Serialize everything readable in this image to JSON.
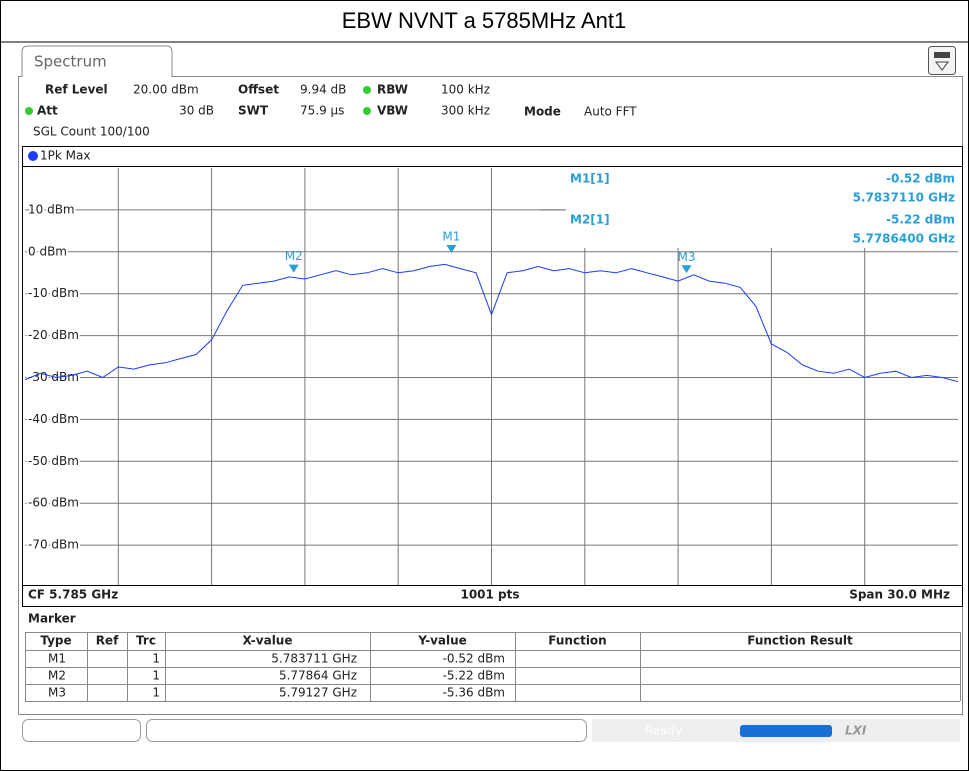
{
  "header": {
    "title": "EBW NVNT a 5785MHz Ant1"
  },
  "tab": {
    "title": "Spectrum"
  },
  "settings": {
    "ref_level": {
      "label": "Ref Level",
      "value": "20.00 dBm"
    },
    "offset": {
      "label": "Offset",
      "value": "9.94 dB"
    },
    "rbw": {
      "label": "RBW",
      "value": "100 kHz"
    },
    "att": {
      "label": "Att",
      "value": "30 dB"
    },
    "swt": {
      "label": "SWT",
      "value": "75.9 µs"
    },
    "vbw": {
      "label": "VBW",
      "value": "300 kHz"
    },
    "mode": {
      "label": "Mode",
      "value": "Auto FFT"
    },
    "sgl_count": "SGL Count 100/100"
  },
  "marker_info": [
    {
      "name": "M1[1]",
      "level": "-0.52 dBm",
      "freq": "5.7837110 GHz"
    },
    {
      "name": "M2[1]",
      "level": "-5.22 dBm",
      "freq": "5.7786400 GHz"
    }
  ],
  "footer": {
    "center_freq": "CF 5.785 GHz",
    "points": "1001 pts",
    "span": "Span 30.0 MHz"
  },
  "marker_table": {
    "title": "Marker",
    "columns": [
      "Type",
      "Ref",
      "Trc",
      "X-value",
      "Y-value",
      "Function",
      "Function Result"
    ],
    "rows": [
      {
        "type": "M1",
        "trc": "1",
        "x_value": "5.783711 GHz",
        "y_value": "-0.52 dBm"
      },
      {
        "type": "M2",
        "trc": "1",
        "x_value": "5.77864 GHz",
        "y_value": "-5.22 dBm"
      },
      {
        "type": "M3",
        "trc": "1",
        "x_value": "5.79127 GHz",
        "y_value": "-5.36 dBm"
      }
    ]
  },
  "status": {
    "state": "Ready"
  },
  "chart_data": {
    "type": "line",
    "xlim": [
      5.77,
      5.8
    ],
    "ylim": [
      -80,
      20
    ],
    "yticks": [
      {
        "value": 10,
        "label": "10 dBm"
      },
      {
        "value": 0,
        "label": "0 dBm"
      },
      {
        "value": -10,
        "label": "-10 dBm"
      },
      {
        "value": -20,
        "label": "-20 dBm"
      },
      {
        "value": -30,
        "label": "-30 dBm"
      },
      {
        "value": -40,
        "label": "-40 dBm"
      },
      {
        "value": -50,
        "label": "-50 dBm"
      },
      {
        "value": -60,
        "label": "-60 dBm"
      },
      {
        "value": -70,
        "label": "-70 dBm"
      }
    ],
    "grid": true,
    "x": [
      5.77,
      5.7705,
      5.771,
      5.7715,
      5.772,
      5.7725,
      5.773,
      5.7735,
      5.774,
      5.7745,
      5.775,
      5.7755,
      5.776,
      5.7765,
      5.777,
      5.7775,
      5.778,
      5.7785,
      5.779,
      5.7795,
      5.78,
      5.7805,
      5.781,
      5.7815,
      5.782,
      5.7825,
      5.783,
      5.7835,
      5.784,
      5.7845,
      5.785,
      5.7855,
      5.786,
      5.7865,
      5.787,
      5.7875,
      5.788,
      5.7885,
      5.789,
      5.7895,
      5.79,
      5.7905,
      5.791,
      5.7915,
      5.792,
      5.7925,
      5.793,
      5.7935,
      5.794,
      5.7945,
      5.795,
      5.7955,
      5.796,
      5.7965,
      5.797,
      5.7975,
      5.798,
      5.7985,
      5.799,
      5.7995,
      5.8
    ],
    "series": [
      {
        "name": "1Pk Max",
        "color": "#1a3cff",
        "values": [
          -30.5,
          -29,
          -30,
          -29.5,
          -28.5,
          -30,
          -27.5,
          -28,
          -27,
          -26.5,
          -25.5,
          -24.5,
          -21,
          -14,
          -8,
          -7.5,
          -7,
          -6,
          -6.5,
          -5.5,
          -4.5,
          -5.5,
          -5,
          -4,
          -5,
          -4.5,
          -3.5,
          -3,
          -4,
          -5,
          -15,
          -5,
          -4.5,
          -3.5,
          -4.5,
          -4,
          -5,
          -4.5,
          -5,
          -4,
          -5,
          -6,
          -7,
          -5.5,
          -7,
          -7.5,
          -8.5,
          -13,
          -22,
          -24,
          -27,
          -28.5,
          -29,
          -28,
          -30,
          -29,
          -28.5,
          -30,
          -29.5,
          -30,
          -31
        ]
      }
    ],
    "markers": [
      {
        "name": "M1",
        "x": 5.783711,
        "y": -0.52
      },
      {
        "name": "M2",
        "x": 5.77864,
        "y": -5.22
      },
      {
        "name": "M3",
        "x": 5.79127,
        "y": -5.36
      }
    ],
    "marker_color": "#2a9fd6"
  }
}
